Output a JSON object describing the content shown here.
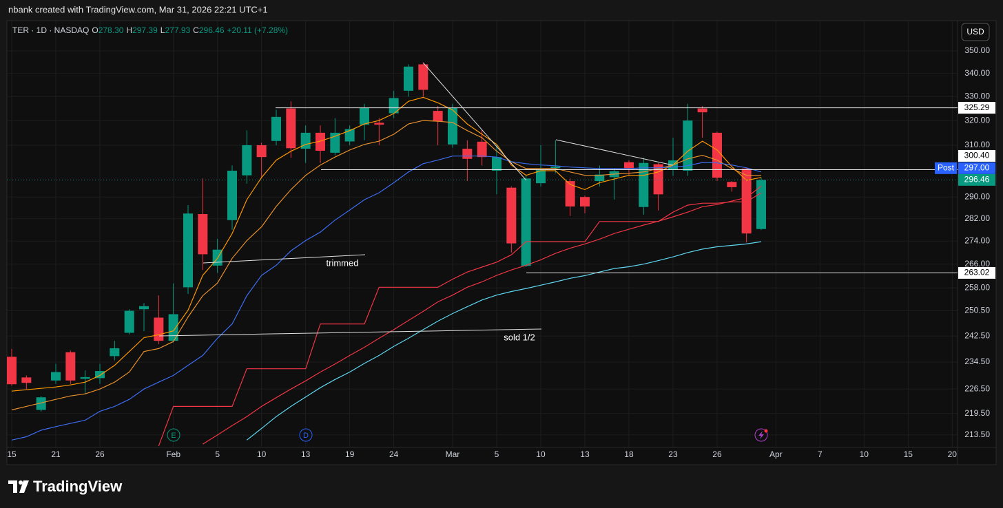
{
  "header": {
    "attribution": "nbank created with TradingView.com, Mar 31, 2026 22:21 UTC+1"
  },
  "chart_data": {
    "type": "candlestick",
    "symbol": "TER · 1D · NASDAQ",
    "ohlc_legend": [
      {
        "label": "O",
        "value": "278.30"
      },
      {
        "label": "H",
        "value": "297.39"
      },
      {
        "label": "L",
        "value": "277.93"
      },
      {
        "label": "C",
        "value": "296.46"
      }
    ],
    "change": "+20.11 (+7.28%)",
    "currency": "USD",
    "categories": [
      "15",
      null,
      null,
      "21",
      null,
      null,
      "26",
      null,
      null,
      null,
      null,
      "Feb",
      null,
      null,
      "5",
      null,
      null,
      "10",
      null,
      null,
      "13",
      null,
      null,
      "19",
      null,
      null,
      "24",
      null,
      null,
      null,
      "Mar",
      null,
      null,
      "5",
      null,
      null,
      "10",
      null,
      null,
      "13",
      null,
      null,
      "18",
      null,
      null,
      "23",
      null,
      null,
      "26",
      null,
      null,
      null,
      "Apr",
      null,
      null,
      "7",
      null,
      null,
      "10",
      null,
      null,
      "15",
      null,
      null,
      "20"
    ],
    "open": [
      236.1,
      229.9,
      220.5,
      229,
      237.5,
      229.5,
      229.7,
      236.3,
      243.5,
      251,
      248.3,
      241,
      258.2,
      283.7,
      265.5,
      281.5,
      298.2,
      310,
      311.7,
      325,
      308.6,
      315,
      307,
      311.5,
      318.3,
      319.1,
      323,
      332.5,
      344,
      324,
      310.3,
      308.6,
      311.4,
      300,
      293.5,
      265.4,
      295.2,
      301,
      296,
      290,
      296,
      297.5,
      303.3,
      286.3,
      302.5,
      300.5,
      300,
      325,
      315,
      295.7,
      300.8,
      278.3,
      null,
      null,
      null,
      null,
      null,
      null,
      null,
      null,
      null,
      null,
      null,
      null,
      null
    ],
    "high": [
      238.5,
      230.5,
      224.5,
      234,
      238,
      232,
      234,
      241,
      251,
      253,
      255.5,
      259.5,
      287,
      297,
      274.8,
      302,
      316,
      311,
      324.5,
      328,
      318,
      318,
      321,
      318,
      327,
      321,
      332.5,
      344,
      345,
      326,
      327,
      312,
      316,
      310,
      294,
      298,
      310,
      312,
      297,
      290.5,
      302,
      301,
      304,
      305,
      303,
      313,
      327,
      326,
      315.5,
      296,
      301,
      297.39,
      null,
      null,
      null,
      null,
      null,
      null,
      null,
      null,
      null,
      null,
      null,
      null,
      null
    ],
    "low": [
      227.5,
      226.5,
      220,
      228,
      228,
      225,
      228,
      235,
      243,
      244,
      240,
      240.5,
      256,
      264,
      263,
      278,
      295,
      297,
      310,
      305,
      303,
      303,
      306,
      310,
      312,
      310,
      321,
      330,
      330,
      310,
      309,
      296,
      302,
      291,
      270,
      265,
      294,
      299,
      283,
      284,
      294,
      289,
      298,
      283.5,
      285,
      298,
      298,
      313,
      296,
      292,
      273.5,
      277.93,
      null,
      null,
      null,
      null,
      null,
      null,
      null,
      null,
      null,
      null,
      null,
      null,
      null
    ],
    "close": [
      227.9,
      228.3,
      224.1,
      231.5,
      229,
      230,
      231.8,
      238.7,
      250.5,
      252,
      241,
      249.4,
      283.9,
      269.4,
      271,
      300,
      310,
      305.3,
      321.5,
      308.8,
      315,
      307.8,
      315,
      316.5,
      325.2,
      318.3,
      329.4,
      343,
      332.9,
      319.7,
      325.3,
      304.6,
      305.3,
      305.3,
      273.2,
      297,
      300.5,
      301.6,
      286.5,
      286.5,
      298.5,
      299.8,
      300.7,
      303,
      291,
      304,
      320,
      323.4,
      297.3,
      293.7,
      276.7,
      296.46,
      null,
      null,
      null,
      null,
      null,
      null,
      null,
      null,
      null,
      null,
      null,
      null,
      null
    ],
    "up_color": "#089981",
    "down_color": "#f23645",
    "series": [
      {
        "color": "#ff9800",
        "values": [
          225.9,
          226.3,
          226.7,
          227.1,
          227.7,
          228.5,
          230.5,
          233.5,
          237.7,
          242,
          242.9,
          244.1,
          250.7,
          262.2,
          268,
          276.7,
          289,
          297.4,
          304.1,
          307.6,
          310.3,
          311.6,
          313.6,
          315.9,
          318.6,
          320,
          322.9,
          328,
          329.7,
          327.4,
          324.4,
          318.6,
          314.4,
          310.3,
          302.2,
          298.2,
          300,
          300,
          294.7,
          292.8,
          295.4,
          296.8,
          298.2,
          298.2,
          299.5,
          302.2,
          307.6,
          311.6,
          308.1,
          301.6,
          296.3,
          297.4,
          null,
          null,
          null,
          null,
          null,
          null,
          null,
          null,
          null,
          null,
          null,
          null,
          null
        ]
      },
      {
        "color": "#e8902b",
        "values": [
          220.5,
          221.5,
          222.5,
          223.5,
          224.5,
          225.1,
          226.5,
          228.5,
          231.5,
          237.7,
          238.6,
          240.8,
          248.5,
          255.4,
          259.6,
          268,
          274.2,
          279.1,
          286.5,
          292.8,
          298.2,
          302.2,
          305.3,
          308.1,
          310.3,
          311.6,
          314.4,
          318.6,
          320,
          319.7,
          319.2,
          315.9,
          313,
          307.6,
          303.5,
          300.8,
          300.8,
          300.8,
          299.5,
          298.2,
          298.2,
          298.7,
          299,
          299.5,
          300.8,
          302.2,
          304.6,
          306,
          304.1,
          300.8,
          298.2,
          298.2,
          null,
          null,
          null,
          null,
          null,
          null,
          null,
          null,
          null,
          null,
          null,
          null,
          null
        ]
      },
      {
        "color": "#3d6df2",
        "values": [
          212.1,
          213,
          214.8,
          215.8,
          216.7,
          217.6,
          220.1,
          221.5,
          223.5,
          226.5,
          228.5,
          230.5,
          233.5,
          236.5,
          241.8,
          246.3,
          255.4,
          262.2,
          265.6,
          270.6,
          274.2,
          277.2,
          281.5,
          285.2,
          289,
          291.6,
          295.4,
          299.5,
          302.7,
          304.1,
          305.7,
          305.7,
          305.7,
          305.3,
          303.5,
          302.7,
          302.2,
          301.9,
          301.4,
          301.1,
          300.8,
          300.8,
          300.8,
          301.1,
          301.1,
          301.4,
          301.9,
          303.2,
          303,
          302.2,
          301.1,
          299.5,
          null,
          null,
          null,
          null,
          null,
          null,
          null,
          null,
          null,
          null,
          null,
          null,
          null
        ]
      },
      {
        "color": "#f23645",
        "values": [
          null,
          null,
          null,
          null,
          null,
          null,
          null,
          null,
          null,
          null,
          null,
          null,
          null,
          211,
          213.5,
          216.1,
          218.6,
          221.5,
          224,
          226.5,
          228.9,
          231.5,
          233.9,
          236.5,
          239,
          241.8,
          244.5,
          247.4,
          250.3,
          253.4,
          255.6,
          258.2,
          260,
          262.2,
          264,
          265.6,
          267.5,
          269.7,
          271.5,
          273,
          274.7,
          276.7,
          278.2,
          279.7,
          281.1,
          282.7,
          284.4,
          286.4,
          287.2,
          288.5,
          289.8,
          294.1,
          null,
          null,
          null,
          null,
          null,
          null,
          null,
          null,
          null,
          null,
          null,
          null,
          null
        ]
      },
      {
        "color": "#5fd7f0",
        "values": [
          null,
          null,
          null,
          null,
          null,
          null,
          null,
          null,
          null,
          null,
          null,
          null,
          null,
          null,
          null,
          null,
          212.1,
          215.3,
          218.6,
          221.5,
          224.2,
          226.9,
          229.3,
          231.5,
          234.1,
          236.5,
          239.3,
          241.8,
          244.5,
          247.2,
          249.6,
          251.8,
          254,
          255.6,
          256.8,
          257.8,
          258.9,
          260,
          261.2,
          262.1,
          263.3,
          264.5,
          265.1,
          266,
          267.2,
          268.5,
          270,
          271.2,
          272,
          272.5,
          273,
          273.8,
          null,
          null,
          null,
          null,
          null,
          null,
          null,
          null,
          null,
          null,
          null,
          null,
          null
        ]
      },
      {
        "color": "#f23645",
        "values": [
          null,
          null,
          null,
          null,
          null,
          null,
          null,
          null,
          null,
          null,
          210.5,
          221.5,
          221.5,
          221.5,
          221.5,
          221.5,
          232.5,
          232.5,
          232.5,
          232.5,
          232.5,
          246.3,
          246.3,
          246.3,
          246.3,
          258.2,
          258.2,
          258.2,
          258.2,
          258.2,
          260.9,
          263.3,
          265,
          266.7,
          269.2,
          273.8,
          273.8,
          273.8,
          273.8,
          273.8,
          281,
          281,
          281,
          281,
          281,
          284.4,
          287,
          287.7,
          287.7,
          288.2,
          288.2,
          291.6,
          null,
          null,
          null,
          null,
          null,
          null,
          null,
          null,
          null,
          null,
          null,
          null,
          null
        ]
      }
    ],
    "ylim": [
      210.1,
      363.9
    ],
    "log_scale": true,
    "grid": true,
    "yticks": [
      {
        "value": 213.5,
        "label": "213.50"
      },
      {
        "value": 219.5,
        "label": "219.50"
      },
      {
        "value": 226.5,
        "label": "226.50"
      },
      {
        "value": 234.5,
        "label": "234.50"
      },
      {
        "value": 242.5,
        "label": "242.50"
      },
      {
        "value": 250.5,
        "label": "250.50"
      },
      {
        "value": 258,
        "label": "258.00"
      },
      {
        "value": 266,
        "label": "266.00"
      },
      {
        "value": 274,
        "label": "274.00"
      },
      {
        "value": 282,
        "label": "282.00"
      },
      {
        "value": 290,
        "label": "290.00"
      },
      {
        "value": 310,
        "label": "310.00"
      },
      {
        "value": 320,
        "label": "320.00"
      },
      {
        "value": 330,
        "label": "330.00"
      },
      {
        "value": 340,
        "label": "340.00"
      },
      {
        "value": 350,
        "label": "350.00"
      }
    ],
    "levels": [
      325.29,
      {
        "value": 300.4,
        "label": "300.40"
      },
      263.02
    ],
    "last_price": 296.46,
    "post_price": {
      "value": 297,
      "label": "297.00"
    },
    "post_label": "Post",
    "annotations": [
      "trimmed",
      "sold 1/2"
    ],
    "events": [
      "E",
      "D"
    ]
  },
  "footer": {
    "brand": "TradingView"
  }
}
